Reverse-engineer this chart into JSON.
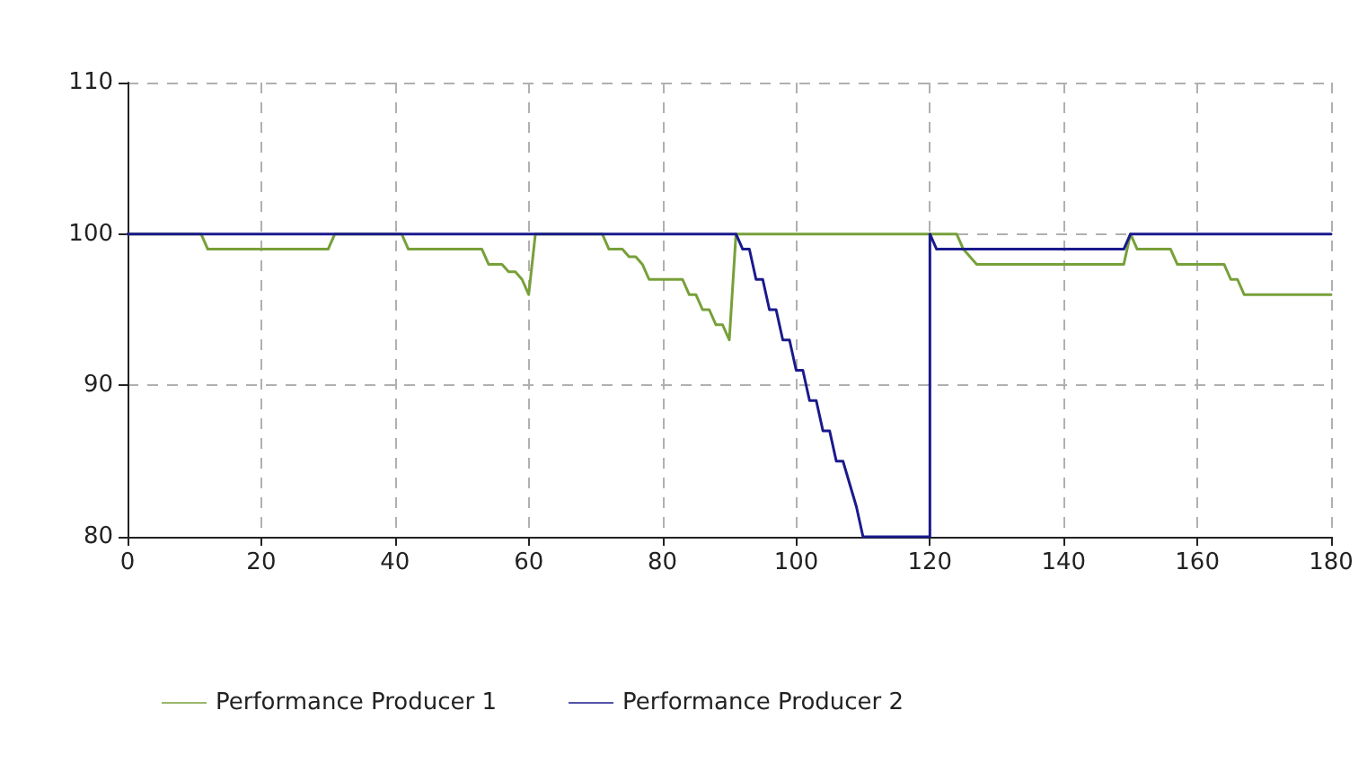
{
  "chart_data": {
    "type": "line",
    "xlim": [
      0,
      180
    ],
    "xticks": [
      0,
      20,
      40,
      60,
      80,
      100,
      120,
      140,
      160,
      180
    ],
    "ylim": [
      80,
      110
    ],
    "yticks": [
      80,
      90,
      100,
      110
    ],
    "grid": true,
    "legend": "bottom",
    "marker": "none",
    "line_style": "solid",
    "series": [
      {
        "name": "Performance Producer 1",
        "color": "#77a03a",
        "x": [
          0,
          11,
          12,
          30,
          31,
          41,
          42,
          53,
          54,
          56,
          57,
          58,
          59,
          60,
          61,
          71,
          72,
          74,
          75,
          76,
          77,
          78,
          83,
          84,
          85,
          86,
          87,
          88,
          89,
          90,
          91,
          124,
          125,
          127,
          149,
          150,
          151,
          156,
          157,
          164,
          165,
          166,
          167,
          180
        ],
        "values": [
          100,
          100,
          99,
          99,
          100,
          100,
          99,
          99,
          98,
          98,
          97.5,
          97.5,
          97,
          96,
          100,
          100,
          99,
          99,
          98.5,
          98.5,
          98,
          97,
          97,
          96,
          96,
          95,
          95,
          94,
          94,
          93,
          100,
          100,
          99,
          98,
          98,
          100,
          99,
          99,
          98,
          98,
          97,
          97,
          96,
          96
        ]
      },
      {
        "name": "Performance Producer 2",
        "color": "#1a1a8c",
        "x": [
          0,
          91,
          92,
          93,
          94,
          95,
          96,
          97,
          98,
          99,
          100,
          101,
          102,
          103,
          104,
          105,
          106,
          107,
          108,
          109,
          110,
          120,
          120,
          121,
          149,
          150,
          180
        ],
        "values": [
          100,
          100,
          99,
          99,
          97,
          97,
          95,
          95,
          93,
          93,
          91,
          91,
          89,
          89,
          87,
          87,
          85,
          85,
          83.5,
          82,
          80,
          80,
          100,
          99,
          99,
          100,
          100
        ]
      }
    ]
  }
}
